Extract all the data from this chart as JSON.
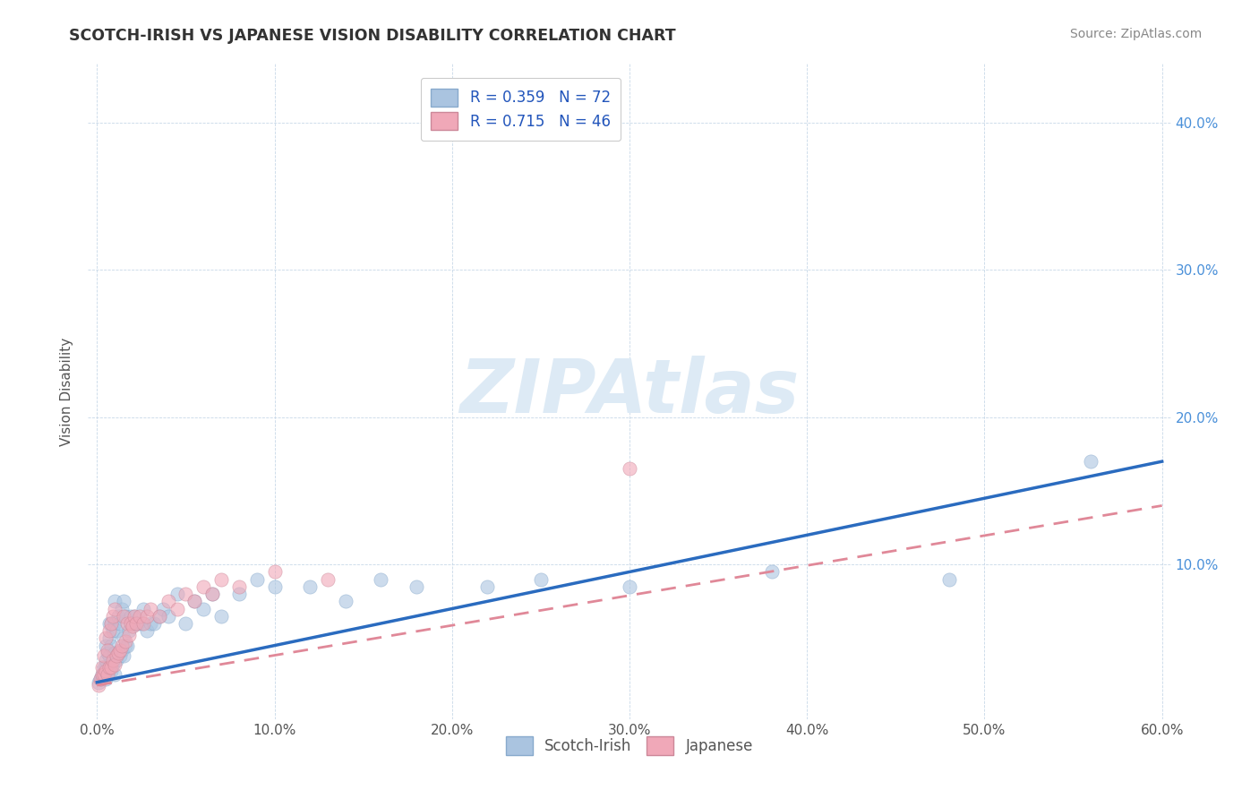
{
  "title": "SCOTCH-IRISH VS JAPANESE VISION DISABILITY CORRELATION CHART",
  "source": "Source: ZipAtlas.com",
  "ylabel": "Vision Disability",
  "xlim": [
    -0.005,
    0.605
  ],
  "ylim": [
    -0.005,
    0.44
  ],
  "xticks": [
    0.0,
    0.1,
    0.2,
    0.3,
    0.4,
    0.5,
    0.6
  ],
  "xticklabels": [
    "0.0%",
    "10.0%",
    "20.0%",
    "30.0%",
    "40.0%",
    "50.0%",
    "60.0%"
  ],
  "yticks": [
    0.1,
    0.2,
    0.3,
    0.4
  ],
  "yticklabels": [
    "10.0%",
    "20.0%",
    "30.0%",
    "40.0%"
  ],
  "scotch_irish_R": 0.359,
  "scotch_irish_N": 72,
  "japanese_R": 0.715,
  "japanese_N": 46,
  "scotch_color": "#aac4e0",
  "japanese_color": "#f0a8b8",
  "scotch_line_color": "#2a6bbf",
  "japanese_line_color": "#e08898",
  "watermark_color": "#ddeaf5",
  "scotch_irish_x": [
    0.001,
    0.002,
    0.003,
    0.003,
    0.004,
    0.004,
    0.005,
    0.005,
    0.005,
    0.005,
    0.006,
    0.006,
    0.007,
    0.007,
    0.007,
    0.007,
    0.008,
    0.008,
    0.008,
    0.009,
    0.009,
    0.01,
    0.01,
    0.01,
    0.01,
    0.011,
    0.011,
    0.012,
    0.012,
    0.013,
    0.013,
    0.014,
    0.014,
    0.015,
    0.015,
    0.015,
    0.016,
    0.016,
    0.017,
    0.018,
    0.019,
    0.02,
    0.021,
    0.022,
    0.023,
    0.025,
    0.026,
    0.028,
    0.03,
    0.032,
    0.035,
    0.037,
    0.04,
    0.045,
    0.05,
    0.055,
    0.06,
    0.065,
    0.07,
    0.08,
    0.09,
    0.1,
    0.12,
    0.14,
    0.16,
    0.18,
    0.22,
    0.25,
    0.3,
    0.38,
    0.48,
    0.56
  ],
  "scotch_irish_y": [
    0.02,
    0.022,
    0.023,
    0.025,
    0.025,
    0.03,
    0.022,
    0.03,
    0.035,
    0.045,
    0.025,
    0.04,
    0.03,
    0.038,
    0.05,
    0.06,
    0.028,
    0.045,
    0.06,
    0.032,
    0.055,
    0.025,
    0.04,
    0.06,
    0.075,
    0.035,
    0.055,
    0.04,
    0.065,
    0.038,
    0.06,
    0.042,
    0.07,
    0.038,
    0.05,
    0.075,
    0.045,
    0.065,
    0.045,
    0.055,
    0.065,
    0.06,
    0.065,
    0.06,
    0.06,
    0.06,
    0.07,
    0.055,
    0.06,
    0.06,
    0.065,
    0.07,
    0.065,
    0.08,
    0.06,
    0.075,
    0.07,
    0.08,
    0.065,
    0.08,
    0.09,
    0.085,
    0.085,
    0.075,
    0.09,
    0.085,
    0.085,
    0.09,
    0.085,
    0.095,
    0.09,
    0.17
  ],
  "japanese_x": [
    0.001,
    0.002,
    0.003,
    0.003,
    0.004,
    0.004,
    0.005,
    0.005,
    0.006,
    0.006,
    0.007,
    0.007,
    0.008,
    0.008,
    0.009,
    0.009,
    0.01,
    0.01,
    0.011,
    0.012,
    0.013,
    0.014,
    0.015,
    0.016,
    0.017,
    0.018,
    0.019,
    0.02,
    0.021,
    0.022,
    0.024,
    0.026,
    0.028,
    0.03,
    0.035,
    0.04,
    0.045,
    0.05,
    0.055,
    0.06,
    0.065,
    0.07,
    0.08,
    0.1,
    0.13,
    0.3
  ],
  "japanese_y": [
    0.018,
    0.022,
    0.025,
    0.03,
    0.025,
    0.038,
    0.028,
    0.05,
    0.025,
    0.042,
    0.03,
    0.055,
    0.03,
    0.06,
    0.035,
    0.065,
    0.032,
    0.07,
    0.038,
    0.04,
    0.042,
    0.045,
    0.065,
    0.048,
    0.06,
    0.052,
    0.06,
    0.058,
    0.065,
    0.06,
    0.065,
    0.06,
    0.065,
    0.07,
    0.065,
    0.075,
    0.07,
    0.08,
    0.075,
    0.085,
    0.08,
    0.09,
    0.085,
    0.095,
    0.09,
    0.165
  ],
  "trend_si_x0": 0.0,
  "trend_si_y0": 0.02,
  "trend_si_x1": 0.6,
  "trend_si_y1": 0.17,
  "trend_jp_x0": 0.0,
  "trend_jp_y0": 0.018,
  "trend_jp_x1": 0.6,
  "trend_jp_y1": 0.14
}
